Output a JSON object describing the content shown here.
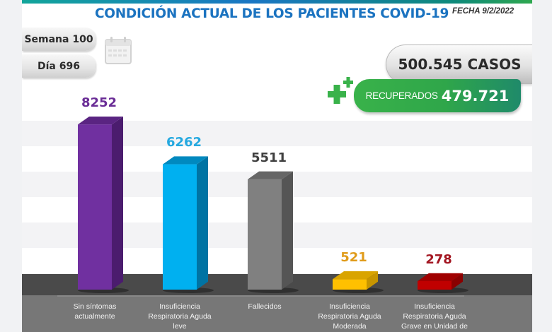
{
  "header": {
    "title": "CONDICIÓN ACTUAL DE LOS PACIENTES COVID-19",
    "fecha": "FECHA 9/2/2022",
    "semana": "Semana 100",
    "dia": "Día 696",
    "calendar_icon": "calendar-icon"
  },
  "totals": {
    "casos": "500.545 CASOS",
    "recuperados_label": "RECUPERADOS",
    "recuperados_value": "479.721",
    "plus_icon": "plus-icon"
  },
  "colors": {
    "title": "#1b73c0",
    "recuperados": "#39b24a",
    "floor": "#4a4a4a",
    "label_band": "#777777"
  },
  "chart_data": {
    "type": "bar",
    "title": "CONDICIÓN ACTUAL DE LOS PACIENTES COVID-19",
    "xlabel": "",
    "ylabel": "",
    "ylim": [
      0,
      9000
    ],
    "grid": false,
    "categories": [
      [
        "Sin síntomas",
        "actualmente"
      ],
      [
        "Insuficiencia",
        "Respiratoria Aguda",
        "leve"
      ],
      [
        "Fallecidos"
      ],
      [
        "Insuficiencia",
        "Respiratoria Aguda",
        "Moderada"
      ],
      [
        "Insuficiencia",
        "Respiratoria Aguda",
        "Grave en Unidad de"
      ]
    ],
    "values": [
      8252,
      6262,
      5511,
      521,
      278
    ],
    "value_labels": [
      "8252",
      "6262",
      "5511",
      "521",
      "278"
    ],
    "bar_colors": [
      {
        "front": "#7030a0",
        "side": "#4b1c6e",
        "top": "#5a2482",
        "label": "#6a2d96"
      },
      {
        "front": "#00b0f0",
        "side": "#0073a3",
        "top": "#0089bf",
        "label": "#25a9e0"
      },
      {
        "front": "#808080",
        "side": "#555555",
        "top": "#666666",
        "label": "#404040"
      },
      {
        "front": "#ffc000",
        "side": "#c79500",
        "top": "#d9a400",
        "label": "#e09b1a"
      },
      {
        "front": "#c00000",
        "side": "#8a0000",
        "top": "#a00000",
        "label": "#a31621"
      }
    ]
  }
}
